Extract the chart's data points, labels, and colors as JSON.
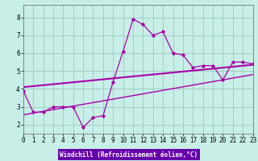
{
  "xlabel": "Windchill (Refroidissement éolien,°C)",
  "background_color": "#c8eee8",
  "grid_color": "#99ccbb",
  "line_color": "#aa00aa",
  "xlabel_bg": "#6600aa",
  "xlabel_color": "#ffffff",
  "xmin": 0,
  "xmax": 23,
  "ymin": 1.5,
  "ymax": 8.7,
  "yticks": [
    2,
    3,
    4,
    5,
    6,
    7,
    8
  ],
  "xticks": [
    0,
    1,
    2,
    3,
    4,
    5,
    6,
    7,
    8,
    9,
    10,
    11,
    12,
    13,
    14,
    15,
    16,
    17,
    18,
    19,
    20,
    21,
    22,
    23
  ],
  "line1_x": [
    0,
    1,
    2,
    3,
    4,
    5,
    6,
    7,
    8,
    9,
    10,
    11,
    12,
    13,
    14,
    15,
    16,
    17,
    18,
    19,
    20,
    21,
    22,
    23
  ],
  "line1_y": [
    3.9,
    2.7,
    2.7,
    3.0,
    3.0,
    3.0,
    1.85,
    2.4,
    2.5,
    4.4,
    6.1,
    7.9,
    7.6,
    7.0,
    7.2,
    6.0,
    5.9,
    5.2,
    5.3,
    5.3,
    4.5,
    5.5,
    5.5,
    5.4
  ],
  "line2_x": [
    0,
    23
  ],
  "line2_y": [
    4.1,
    5.35
  ],
  "line3_x": [
    0,
    23
  ],
  "line3_y": [
    2.55,
    4.8
  ],
  "tick_fontsize": 5.5,
  "xlabel_fontsize": 5.5
}
